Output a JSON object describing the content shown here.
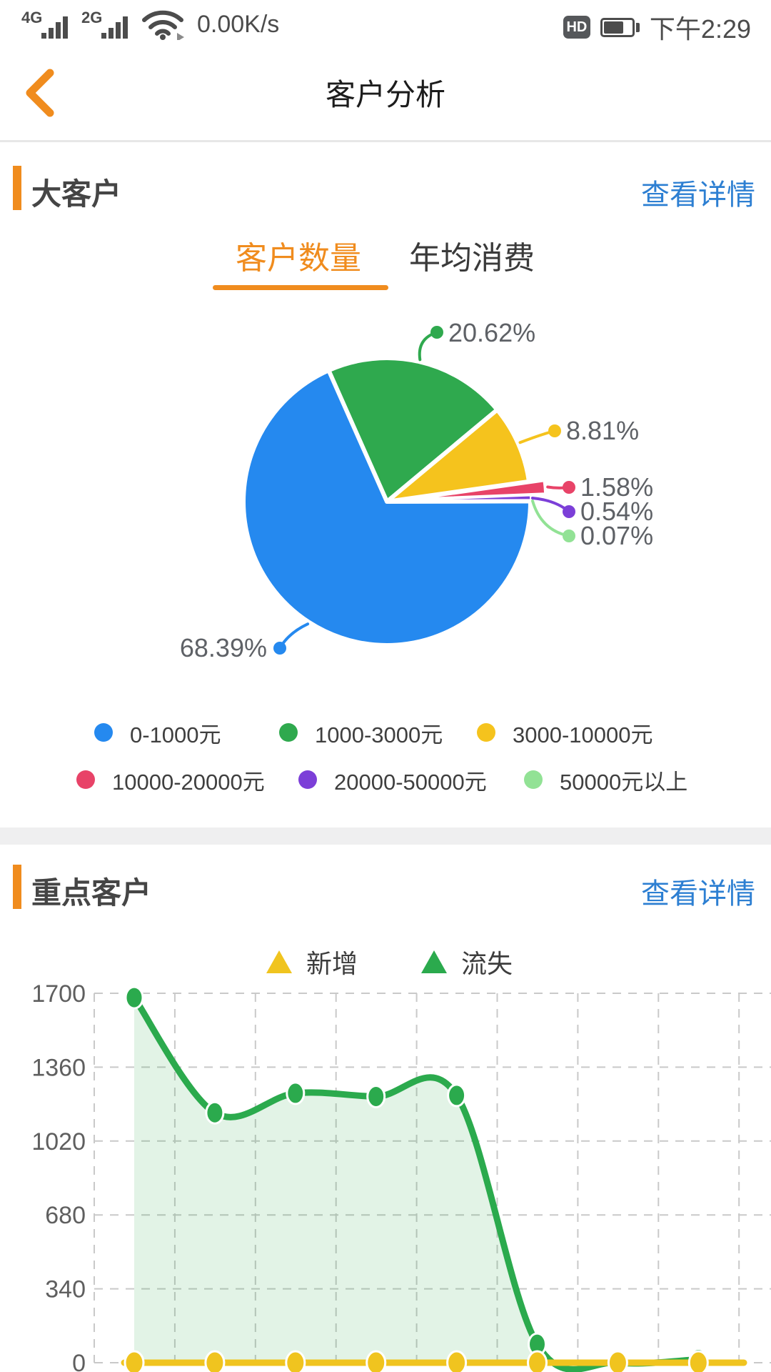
{
  "status_bar": {
    "network_1": "4G",
    "network_2": "2G",
    "speed": "0.00K/s",
    "hd_badge": "HD",
    "time": "下午2:29",
    "battery_fill_percent": 72
  },
  "nav": {
    "title": "客户分析"
  },
  "colors": {
    "accent_orange": "#f08c1e",
    "link_blue": "#2d7fd2",
    "pie_blue": "#2589ef",
    "pie_green": "#2fa94e",
    "pie_yellow": "#f5c31d",
    "pie_red": "#e84368",
    "pie_purple": "#7c3fd8",
    "pie_lightgreen": "#92e295",
    "line_green": "#2baa4d",
    "line_yellow": "#f0c41f",
    "grid_gray": "#c9c9c9",
    "label_gray": "#5e6166"
  },
  "section_big_customer": {
    "title": "大客户",
    "link": "查看详情",
    "tabs": [
      {
        "label": "客户数量",
        "active": true
      },
      {
        "label": "年均消费",
        "active": false
      }
    ]
  },
  "section_key_customer": {
    "title": "重点客户",
    "link": "查看详情",
    "legend": [
      {
        "label": "新增",
        "color": "#f0c41f"
      },
      {
        "label": "流失",
        "color": "#2baa4d"
      }
    ]
  },
  "chart_data": [
    {
      "type": "pie",
      "title": "客户数量",
      "start_angle": 114,
      "legend_position": "bottom",
      "slices": [
        {
          "label": "0-1000元",
          "value": 68.39,
          "percent_label": "68.39%",
          "color": "#2589ef",
          "explode": 0
        },
        {
          "label": "1000-3000元",
          "value": 20.62,
          "percent_label": "20.62%",
          "color": "#2fa94e",
          "explode": 0
        },
        {
          "label": "3000-10000元",
          "value": 8.81,
          "percent_label": "8.81%",
          "color": "#f5c31d",
          "explode": 0
        },
        {
          "label": "10000-20000元",
          "value": 1.58,
          "percent_label": "1.58%",
          "color": "#e84368",
          "explode": 22
        },
        {
          "label": "20000-50000元",
          "value": 0.54,
          "percent_label": "0.54%",
          "color": "#7c3fd8",
          "explode": 0
        },
        {
          "label": "50000元以上",
          "value": 0.07,
          "percent_label": "0.07%",
          "color": "#92e295",
          "explode": 0
        }
      ]
    },
    {
      "type": "line",
      "x_count": 8,
      "ylim": [
        0,
        1700
      ],
      "y_ticks": [
        1700,
        1360,
        1020,
        680,
        340,
        0
      ],
      "grid": "dashed",
      "series": [
        {
          "name": "新增",
          "color": "#f0c41f",
          "area": false,
          "values": [
            0,
            0,
            0,
            0,
            0,
            0,
            0,
            0
          ]
        },
        {
          "name": "流失",
          "color": "#2baa4d",
          "area": true,
          "values": [
            1680,
            1150,
            1240,
            1225,
            1230,
            85,
            0,
            15
          ]
        }
      ]
    }
  ]
}
